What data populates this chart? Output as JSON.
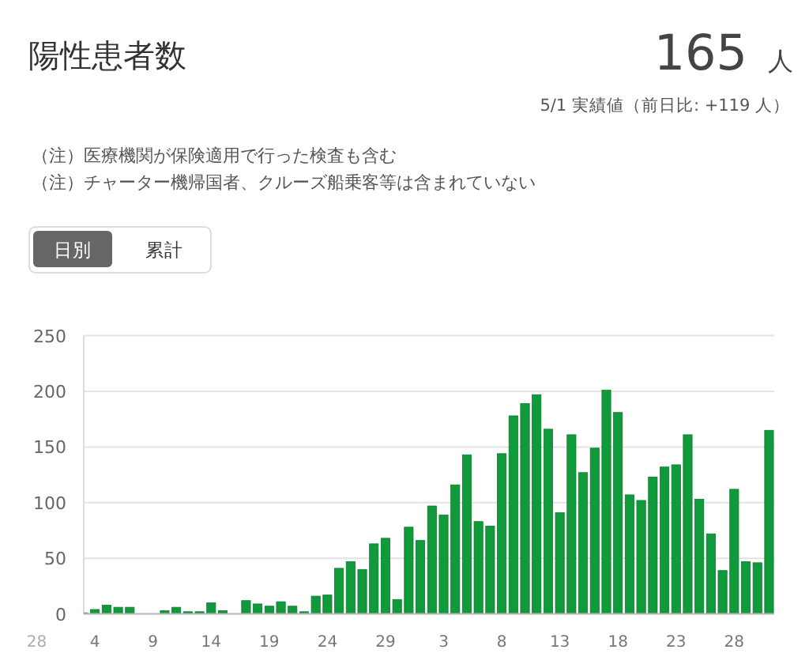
{
  "chart_data": {
    "type": "bar",
    "title": "陽性患者数",
    "annotations": [
      "165",
      "人",
      "5/1 実績値（前日比: +119 人）",
      "（注）医療機関が保険適用で行った検査も含む",
      "（注）チャーター機帰国者、クルーズ船乗客等は含まれていない",
      "日別",
      "累計"
    ],
    "categories": [
      "28",
      null,
      null,
      null,
      null,
      "4",
      null,
      null,
      null,
      null,
      "9",
      null,
      null,
      null,
      null,
      "14",
      null,
      null,
      null,
      null,
      "19",
      null,
      null,
      null,
      null,
      "24",
      null,
      null,
      null,
      null,
      "29",
      null,
      null,
      null,
      null,
      "3",
      null,
      null,
      null,
      null,
      "8",
      null,
      null,
      null,
      null,
      "13",
      null,
      null,
      null,
      null,
      "18",
      null,
      null,
      null,
      null,
      "23",
      null,
      null,
      null,
      null,
      "28",
      null,
      null,
      null
    ],
    "values": [
      null,
      null,
      null,
      null,
      1,
      4,
      8,
      6,
      6,
      0,
      0,
      3,
      6,
      2,
      2,
      10,
      3,
      0,
      12,
      9,
      7,
      11,
      7,
      2,
      16,
      17,
      41,
      47,
      40,
      63,
      68,
      13,
      78,
      66,
      97,
      89,
      116,
      143,
      83,
      79,
      144,
      178,
      189,
      197,
      166,
      91,
      161,
      127,
      149,
      201,
      181,
      107,
      102,
      123,
      132,
      134,
      161,
      103,
      72,
      39,
      112,
      47,
      46,
      165
    ],
    "color": "#119a3b",
    "ylim": [
      0,
      250
    ],
    "yticks": [
      0,
      50,
      100,
      150,
      200,
      250
    ],
    "grid": "y"
  }
}
